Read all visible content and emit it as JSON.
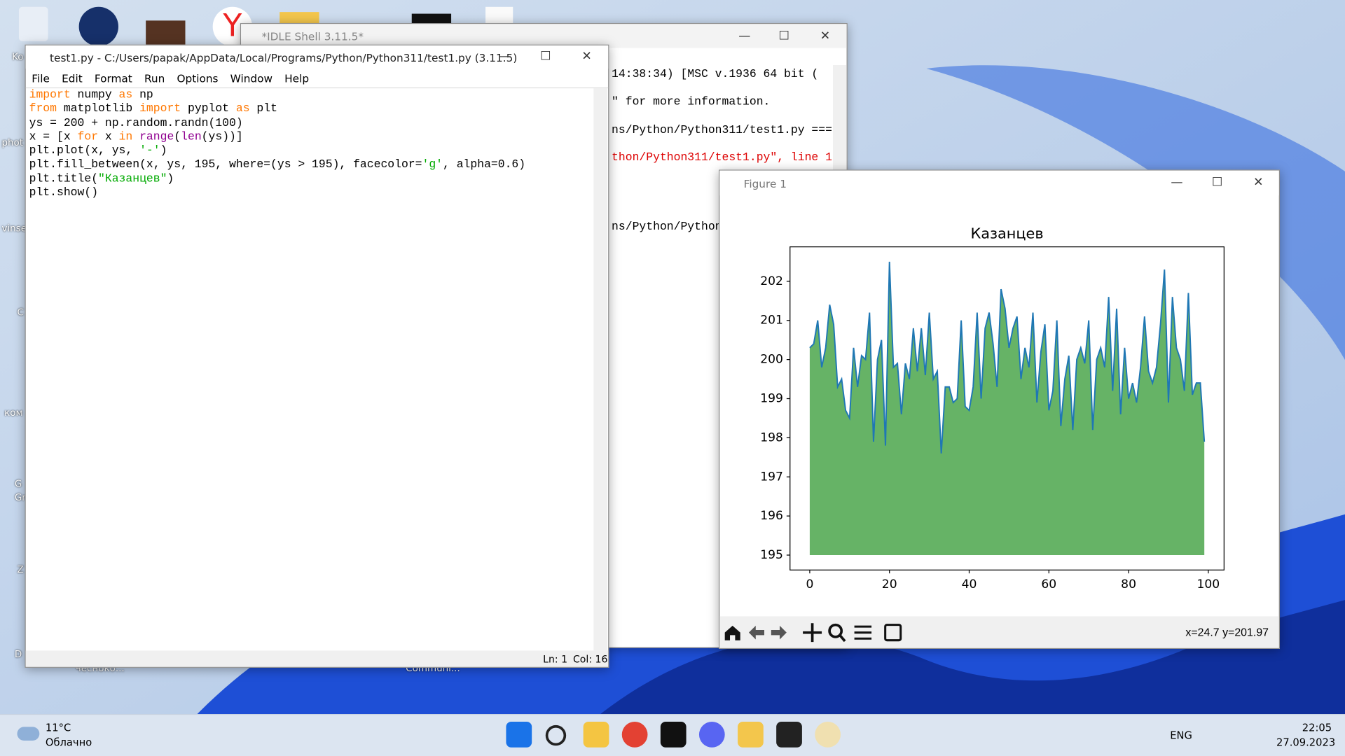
{
  "desktop": {
    "labels": [
      "Ko",
      "phot",
      "vinse",
      "C",
      "ком",
      "G",
      "Gr",
      "Z",
      "D",
      "чесноко...",
      "Communi..."
    ]
  },
  "shell": {
    "title": "*IDLE Shell 3.11.5*",
    "lines": [
      {
        "text": "14:38:34) [MSC v.1936 64 bit (",
        "color": "#000000"
      },
      {
        "text": "\" for more information.",
        "color": "#000000"
      },
      {
        "text": "ns/Python/Python311/test1.py ===",
        "color": "#000000"
      },
      {
        "text": "thon/Python311/test1.py\", line 1",
        "color": "#dd0000"
      },
      {
        "text": "ns/Python/Python3",
        "color": "#000000"
      }
    ]
  },
  "editor": {
    "title": "test1.py - C:/Users/papak/AppData/Local/Programs/Python/Python311/test1.py (3.11.5)",
    "menu": [
      "File",
      "Edit",
      "Format",
      "Run",
      "Options",
      "Window",
      "Help"
    ],
    "code": [
      [
        {
          "text": "import",
          "color": "#ff7700"
        },
        {
          "text": " numpy "
        },
        {
          "text": "as",
          "color": "#ff7700"
        },
        {
          "text": " np"
        }
      ],
      [
        {
          "text": "from",
          "color": "#ff7700"
        },
        {
          "text": " matplotlib "
        },
        {
          "text": "import",
          "color": "#ff7700"
        },
        {
          "text": " pyplot "
        },
        {
          "text": "as",
          "color": "#ff7700"
        },
        {
          "text": " plt"
        }
      ],
      [
        {
          "text": "ys = 200 + np.random.randn(100)"
        }
      ],
      [
        {
          "text": "x = [x "
        },
        {
          "text": "for",
          "color": "#ff7700"
        },
        {
          "text": " x "
        },
        {
          "text": "in",
          "color": "#ff7700"
        },
        {
          "text": " "
        },
        {
          "text": "range",
          "color": "#900090"
        },
        {
          "text": "("
        },
        {
          "text": "len",
          "color": "#900090"
        },
        {
          "text": "(ys))]"
        }
      ],
      [
        {
          "text": "plt.plot(x, ys, "
        },
        {
          "text": "'-'",
          "color": "#00aa00"
        },
        {
          "text": ")"
        }
      ],
      [
        {
          "text": "plt.fill_between(x, ys, 195, where=(ys > 195), facecolor="
        },
        {
          "text": "'g'",
          "color": "#00aa00"
        },
        {
          "text": ", alpha=0.6)"
        }
      ],
      [
        {
          "text": "plt.title("
        },
        {
          "text": "\"Казанцев\"",
          "color": "#00aa00"
        },
        {
          "text": ")"
        }
      ],
      [
        {
          "text": "plt.show()"
        }
      ]
    ],
    "status": [
      "Ln: 1",
      "Col: 16"
    ]
  },
  "figure": {
    "title": "Figure 1",
    "status": "x=24.7 y=201.97"
  },
  "chart_data": {
    "type": "line",
    "title": "Казанцев",
    "x": [
      0,
      1,
      2,
      3,
      4,
      5,
      6,
      7,
      8,
      9,
      10,
      11,
      12,
      13,
      14,
      15,
      16,
      17,
      18,
      19,
      20,
      21,
      22,
      23,
      24,
      25,
      26,
      27,
      28,
      29,
      30,
      31,
      32,
      33,
      34,
      35,
      36,
      37,
      38,
      39,
      40,
      41,
      42,
      43,
      44,
      45,
      46,
      47,
      48,
      49,
      50,
      51,
      52,
      53,
      54,
      55,
      56,
      57,
      58,
      59,
      60,
      61,
      62,
      63,
      64,
      65,
      66,
      67,
      68,
      69,
      70,
      71,
      72,
      73,
      74,
      75,
      76,
      77,
      78,
      79,
      80,
      81,
      82,
      83,
      84,
      85,
      86,
      87,
      88,
      89,
      90,
      91,
      92,
      93,
      94,
      95,
      96,
      97,
      98,
      99
    ],
    "series": [
      {
        "color": "#1f77b4",
        "values": [
          200.3,
          200.4,
          201.0,
          199.8,
          200.3,
          201.4,
          200.9,
          199.3,
          199.5,
          198.7,
          198.5,
          200.3,
          199.3,
          200.1,
          200.0,
          201.2,
          197.9,
          200.0,
          200.5,
          197.8,
          202.5,
          199.8,
          199.9,
          198.6,
          199.9,
          199.5,
          200.8,
          199.7,
          200.8,
          199.6,
          201.2,
          199.5,
          199.7,
          197.6,
          199.3,
          199.3,
          198.9,
          199.0,
          201.0,
          198.8,
          198.7,
          199.3,
          201.2,
          199.0,
          200.8,
          201.2,
          200.4,
          199.3,
          201.8,
          201.3,
          200.3,
          200.8,
          201.1,
          199.5,
          200.3,
          199.8,
          201.2,
          198.9,
          200.2,
          200.9,
          198.7,
          199.2,
          201.0,
          198.3,
          199.5,
          200.1,
          198.2,
          200.0,
          200.3,
          199.9,
          201.0,
          198.2,
          200.0,
          200.3,
          199.8,
          201.6,
          199.2,
          201.3,
          198.6,
          200.3,
          199.0,
          199.4,
          198.9,
          199.8,
          201.1,
          199.7,
          199.4,
          199.8,
          200.9,
          202.3,
          198.9,
          201.6,
          200.3,
          200.0,
          199.2,
          201.7,
          199.1,
          199.4,
          199.4,
          197.9
        ]
      }
    ],
    "fill_between": {
      "to": 195,
      "color": "#008000",
      "alpha": 0.6
    },
    "xlim": [
      -4.95,
      103.95
    ],
    "xticks": [
      0,
      20,
      40,
      60,
      80,
      100
    ],
    "ylim": [
      194.62,
      202.88
    ],
    "yticks": [
      195,
      196,
      197,
      198,
      199,
      200,
      201,
      202
    ]
  },
  "taskbar": {
    "weather": [
      "11°C",
      "Облачно"
    ],
    "lang": "ENG",
    "time": "22:05",
    "date": "27.09.2023"
  }
}
